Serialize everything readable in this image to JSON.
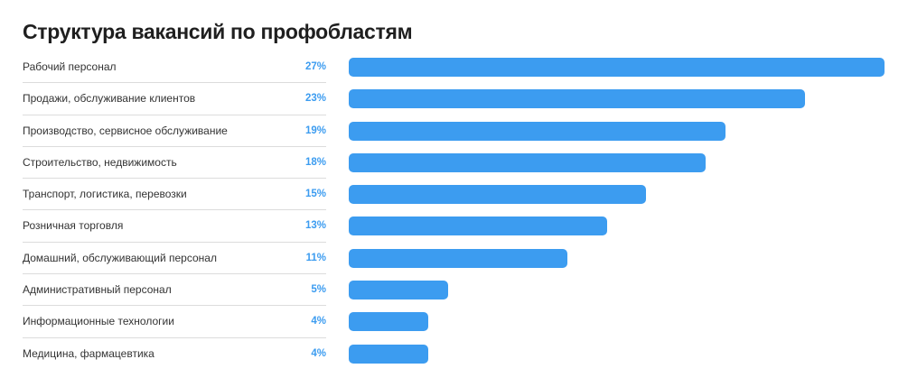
{
  "chart_data": {
    "type": "bar",
    "orientation": "horizontal",
    "title": "Структура вакансий по профобластям",
    "categories": [
      "Рабочий персонал",
      "Продажи, обслуживание клиентов",
      "Производство, сервисное обслуживание",
      "Строительство, недвижимость",
      "Транспорт, логистика, перевозки",
      "Розничная торговля",
      "Домашний, обслуживающий персонал",
      "Административный персонал",
      "Информационные технологии",
      "Медицина, фармацевтика"
    ],
    "values": [
      27,
      23,
      19,
      18,
      15,
      13,
      11,
      5,
      4,
      4
    ],
    "value_labels": [
      "27%",
      "23%",
      "19%",
      "18%",
      "15%",
      "13%",
      "11%",
      "5%",
      "4%",
      "4%"
    ],
    "xlabel": "",
    "ylabel": "",
    "xlim": [
      0,
      27
    ],
    "grid": false,
    "bar_color": "#3c9cf0",
    "label_color": "#3c9cf0"
  }
}
